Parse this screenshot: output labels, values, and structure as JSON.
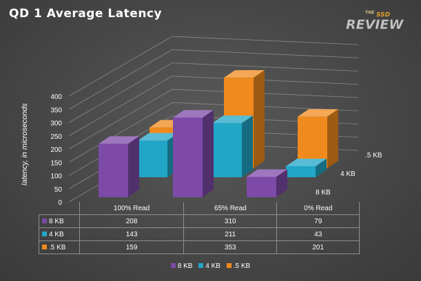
{
  "title": "QD 1 Average Latency",
  "logo": {
    "small": "THE",
    "middle": "SSD",
    "main": "REVIEW"
  },
  "chart_data": {
    "type": "bar",
    "subtype": "3d-clustered",
    "title": "QD 1 Average Latency",
    "ylabel": "latency, in microseconds",
    "xlabel": "",
    "ylim": [
      0,
      400
    ],
    "yticks": [
      0,
      50,
      100,
      150,
      200,
      250,
      300,
      350,
      400
    ],
    "categories": [
      "100% Read",
      "65% Read",
      "0% Read"
    ],
    "series": [
      {
        "name": "8 KB",
        "color": "#7d4aa8",
        "values": [
          208,
          310,
          79
        ]
      },
      {
        "name": "4 KB",
        "color": "#21a6c8",
        "values": [
          143,
          211,
          43
        ]
      },
      {
        "name": ".5 KB",
        "color": "#f08a1c",
        "values": [
          159,
          353,
          201
        ]
      }
    ],
    "depth_labels": [
      ".5 KB",
      "4 KB",
      "8 KB"
    ],
    "legend": [
      "8 KB",
      "4 KB",
      ".5 KB"
    ],
    "legend_position": "bottom",
    "data_table": true,
    "grid": true
  }
}
